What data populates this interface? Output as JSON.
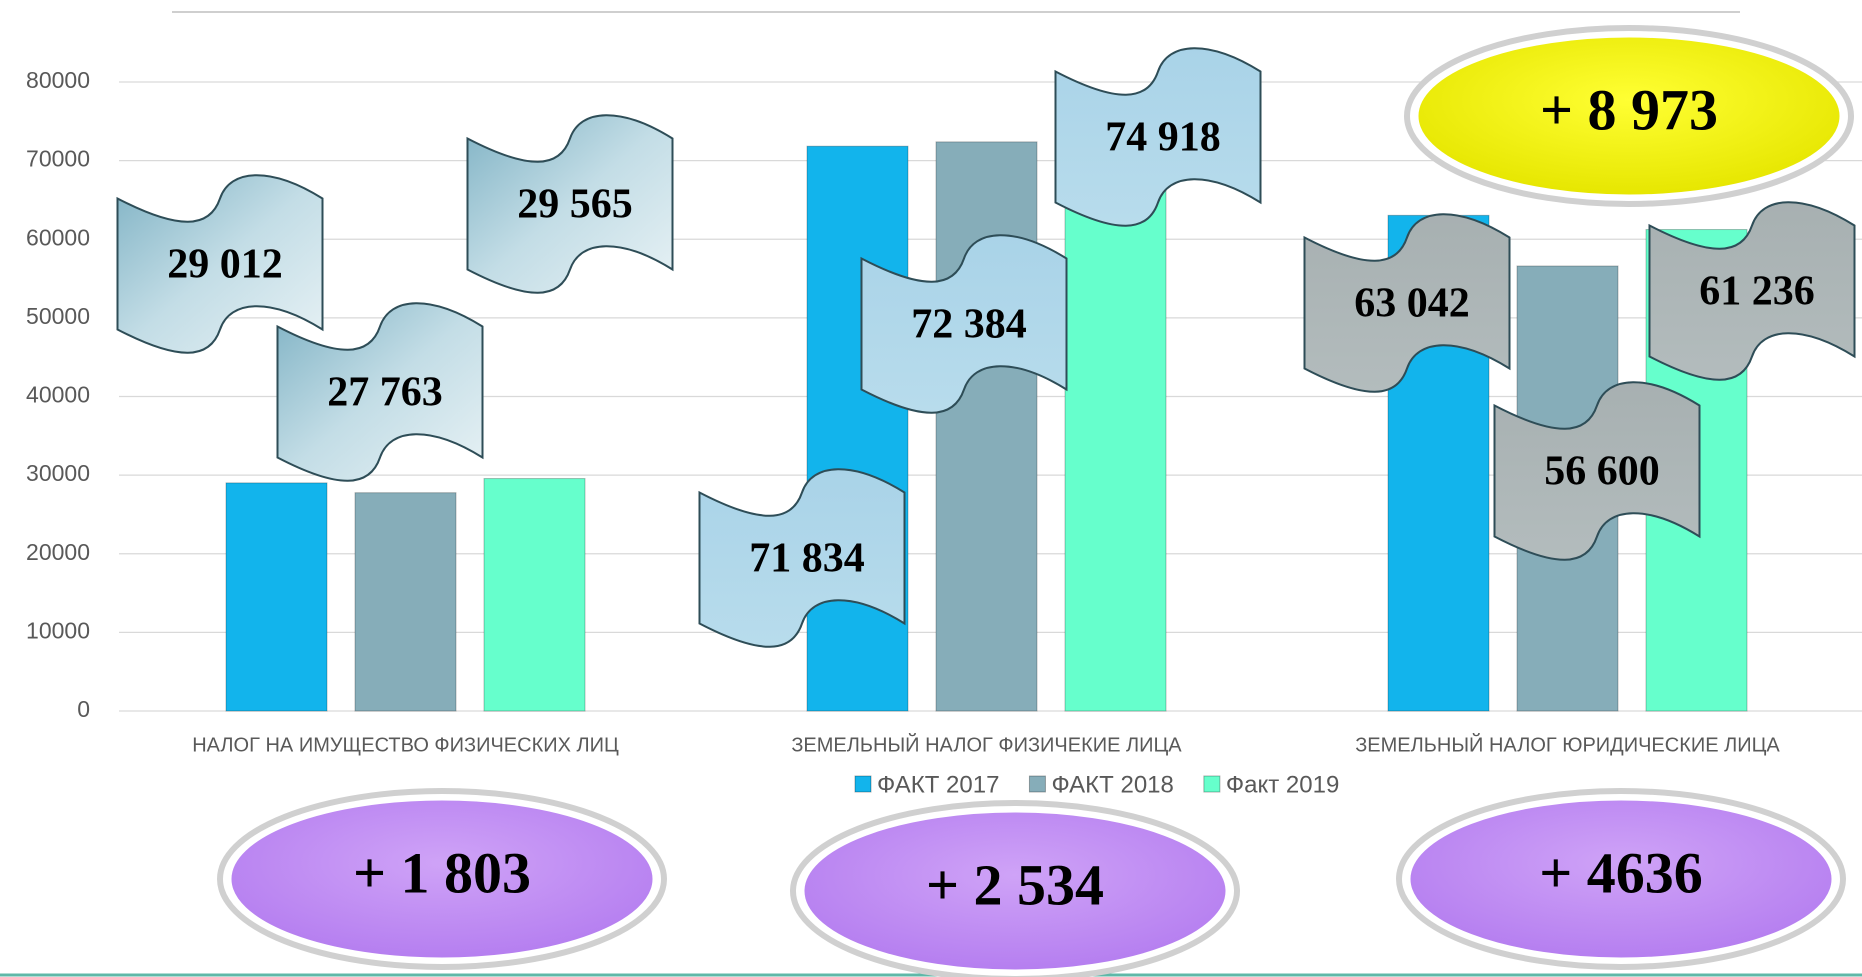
{
  "chart_data": {
    "type": "bar",
    "categories": [
      "НАЛОГ НА ИМУЩЕСТВО ФИЗИЧЕСКИХ ЛИЦ",
      "ЗЕМЕЛЬНЫЙ НАЛОГ ФИЗИЧЕКИЕ ЛИЦА",
      "ЗЕМЕЛЬНЫЙ НАЛОГ ЮРИДИЧЕСКИЕ ЛИЦА"
    ],
    "series": [
      {
        "name": "ФАКТ 2017",
        "color": "#12b4ec",
        "values": [
          29012,
          71834,
          63042
        ],
        "value_labels": [
          "29 012",
          "71 834",
          "63 042"
        ]
      },
      {
        "name": "ФАКТ 2018",
        "color": "#86adb9",
        "values": [
          27763,
          72384,
          56600
        ],
        "value_labels": [
          "27 763",
          "72 384",
          "56 600"
        ]
      },
      {
        "name": "Факт 2019",
        "color": "#66ffcc",
        "values": [
          29565,
          74918,
          61236
        ],
        "value_labels": [
          "29 565",
          "74 918",
          "61 236"
        ]
      }
    ],
    "ylim": [
      0,
      80000
    ],
    "yticks": [
      0,
      10000,
      20000,
      30000,
      40000,
      50000,
      60000,
      70000,
      80000
    ],
    "grid": true,
    "legend": "bottom",
    "annotations": [
      "+ 1 803",
      "+ 2 534",
      "+  4636",
      "+ 8 973"
    ]
  }
}
